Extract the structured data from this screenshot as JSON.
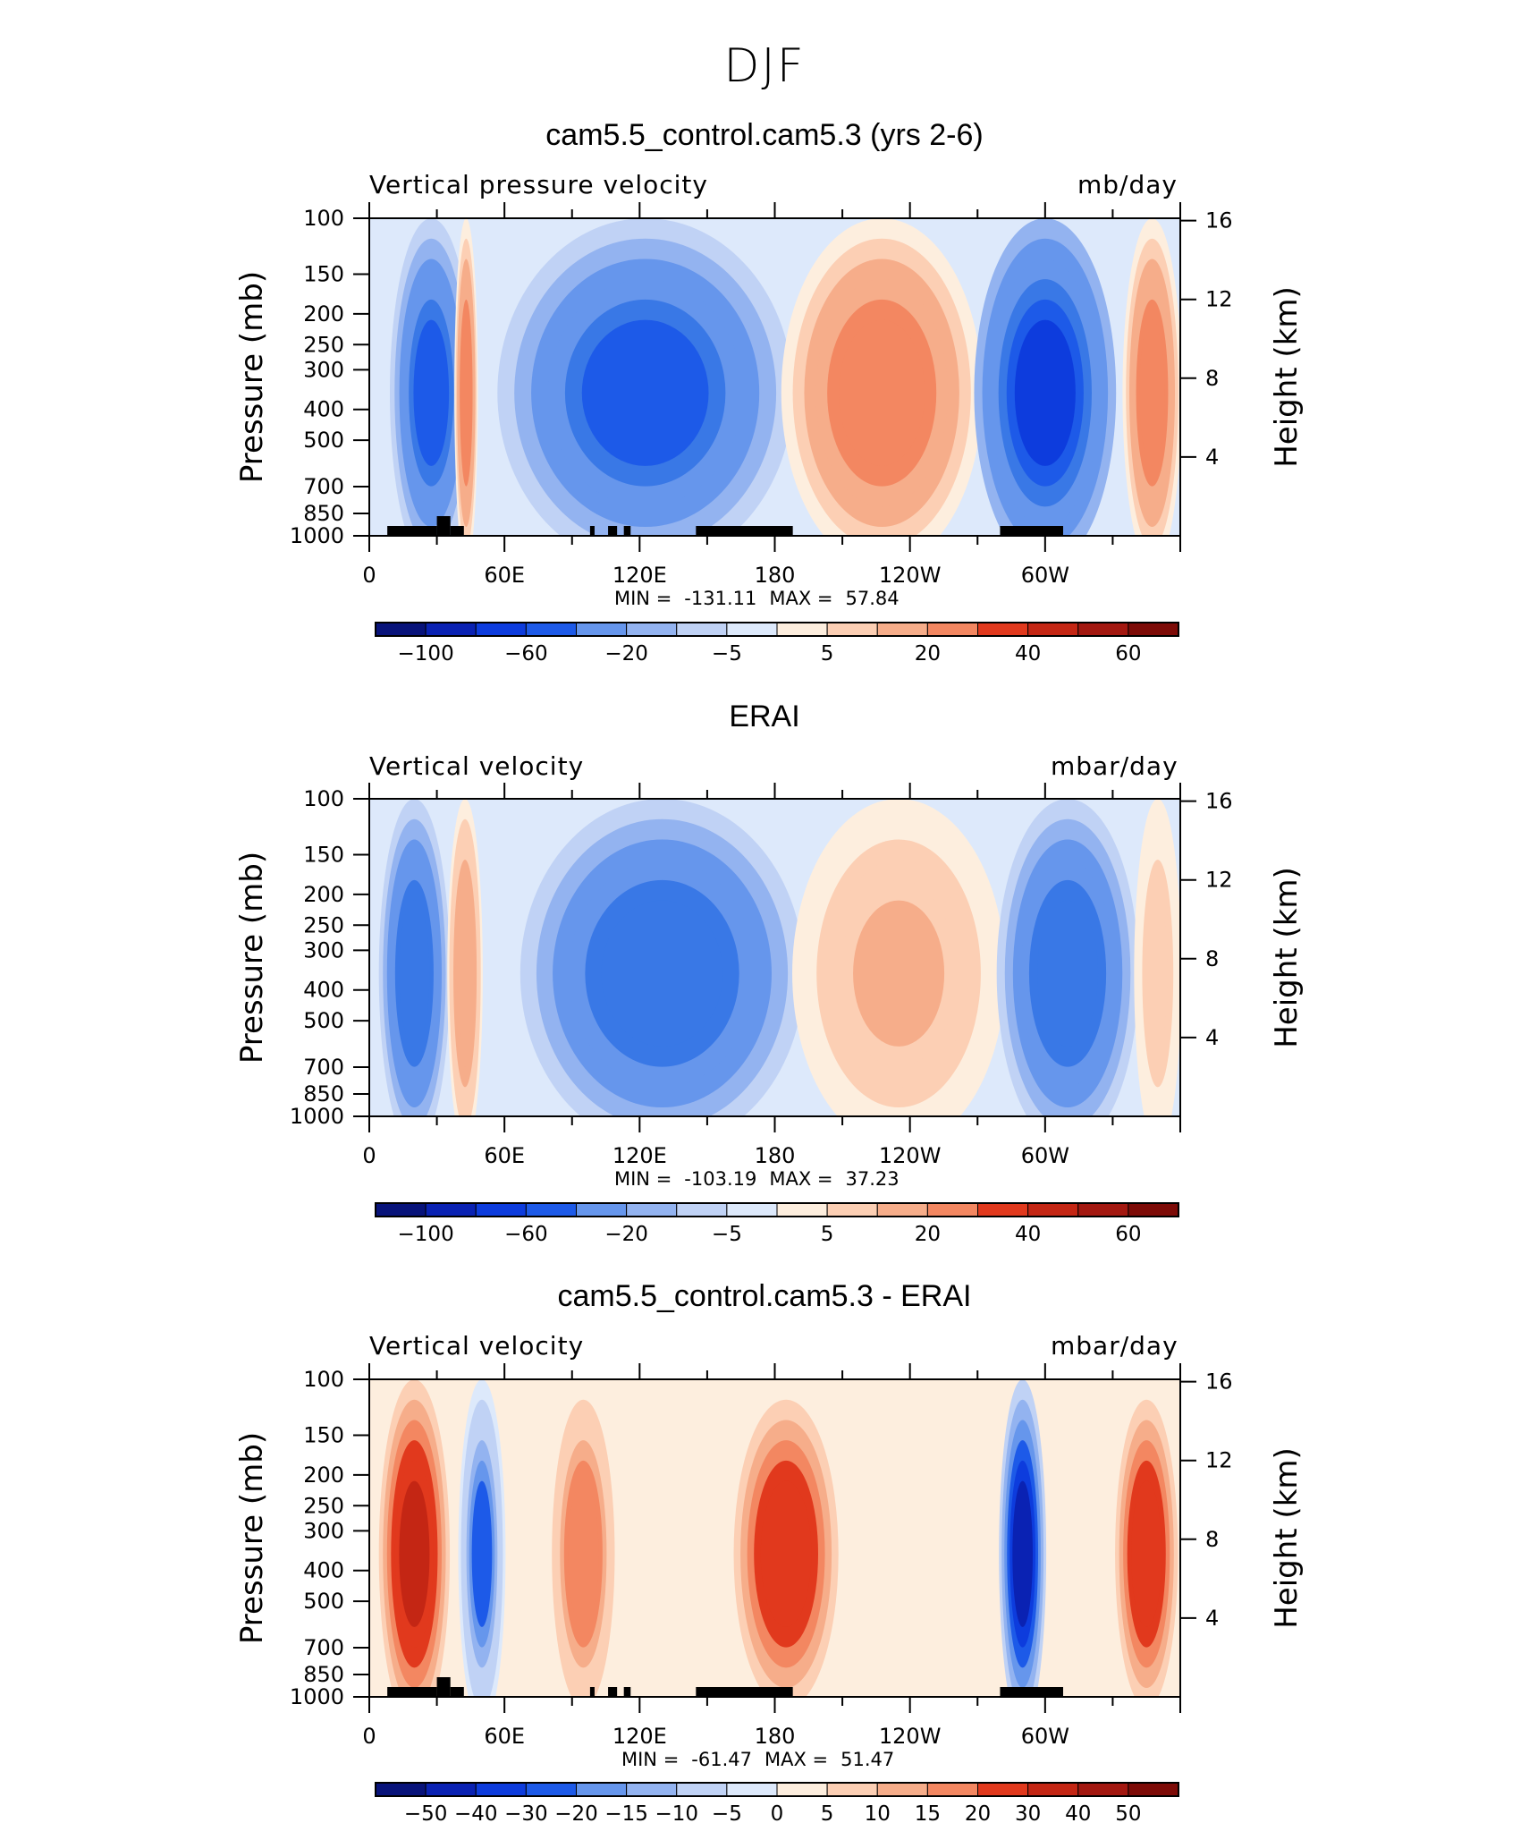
{
  "main_title": "DJF",
  "colors": {
    "scale": [
      "#08137a",
      "#0a22b3",
      "#0d3cdd",
      "#1d5ae8",
      "#3978e6",
      "#6696ec",
      "#93b3f0",
      "#c0d2f5",
      "#dde9fb",
      "#fdeede",
      "#fccfb4",
      "#f6ad8a",
      "#f38761",
      "#f15a34",
      "#e1391d",
      "#c42614",
      "#a31810",
      "#7d0b07"
    ]
  },
  "panels": [
    {
      "title": "cam5.5_control.cam5.3 (yrs 2-6)",
      "left_label": "Vertical pressure velocity",
      "right_label": "mb/day",
      "min_label": "MIN =",
      "min_value": "-131.11",
      "max_label": "MAX =",
      "max_value": "57.84",
      "colorbar_labels": [
        "−100",
        "−60",
        "−20",
        "−5",
        "5",
        "20",
        "40",
        "60"
      ]
    },
    {
      "title": "ERAI",
      "left_label": "Vertical velocity",
      "right_label": "mbar/day",
      "min_label": "MIN =",
      "min_value": "-103.19",
      "max_label": "MAX =",
      "max_value": "37.23",
      "colorbar_labels": [
        "−100",
        "−60",
        "−20",
        "−5",
        "5",
        "20",
        "40",
        "60"
      ]
    },
    {
      "title": "cam5.5_control.cam5.3 - ERAI",
      "left_label": "Vertical velocity",
      "right_label": "mbar/day",
      "min_label": "MIN =",
      "min_value": "-61.47",
      "max_label": "MAX =",
      "max_value": "51.47",
      "colorbar_labels": [
        "−50",
        "−40",
        "−30",
        "−20",
        "−15",
        "−10",
        "−5",
        "0",
        "5",
        "10",
        "15",
        "20",
        "30",
        "40",
        "50"
      ]
    }
  ],
  "chart_data": [
    {
      "type": "heatmap",
      "title": "cam5.5_control.cam5.3 (yrs 2-6)",
      "xlabel": "",
      "ylabel": "Pressure (mb)",
      "y2label": "Height (km)",
      "x_ticklabels": [
        "0",
        "60E",
        "120E",
        "180",
        "120W",
        "60W"
      ],
      "y_ticklabels": [
        "100",
        "150",
        "200",
        "250",
        "300",
        "400",
        "500",
        "700",
        "850",
        "1000"
      ],
      "y2_ticklabels": [
        "16",
        "12",
        "8",
        "4"
      ],
      "y_scale": "log",
      "ylim": [
        1000,
        100
      ],
      "units": "mb/day",
      "min": -131.11,
      "max": 57.84,
      "levels": [
        -120,
        -100,
        -80,
        -60,
        -40,
        -20,
        -10,
        -5,
        0,
        5,
        10,
        20,
        30,
        40,
        50,
        60,
        70
      ],
      "features": [
        {
          "lon_range": [
            10,
            45
          ],
          "value": -60
        },
        {
          "lon_range": [
            38,
            48
          ],
          "value": 30
        },
        {
          "lon_range": [
            60,
            185
          ],
          "value": -60
        },
        {
          "lon_range": [
            185,
            270
          ],
          "value": 25
        },
        {
          "lon_range": [
            270,
            330
          ],
          "value": -80
        },
        {
          "lon_range": [
            335,
            360
          ],
          "value": 30
        }
      ]
    },
    {
      "type": "heatmap",
      "title": "ERAI",
      "xlabel": "",
      "ylabel": "Pressure (mb)",
      "y2label": "Height (km)",
      "x_ticklabels": [
        "0",
        "60E",
        "120E",
        "180",
        "120W",
        "60W"
      ],
      "y_ticklabels": [
        "100",
        "150",
        "200",
        "250",
        "300",
        "400",
        "500",
        "700",
        "850",
        "1000"
      ],
      "y2_ticklabels": [
        "16",
        "12",
        "8",
        "4"
      ],
      "y_scale": "log",
      "ylim": [
        1000,
        100
      ],
      "units": "mbar/day",
      "min": -103.19,
      "max": 37.23,
      "levels": [
        -120,
        -100,
        -80,
        -60,
        -40,
        -20,
        -10,
        -5,
        0,
        5,
        10,
        20,
        30,
        40,
        50,
        60,
        70
      ],
      "features": [
        {
          "lon_range": [
            5,
            35
          ],
          "value": -50
        },
        {
          "lon_range": [
            35,
            50
          ],
          "value": 20
        },
        {
          "lon_range": [
            70,
            190
          ],
          "value": -50
        },
        {
          "lon_range": [
            190,
            280
          ],
          "value": 12
        },
        {
          "lon_range": [
            280,
            340
          ],
          "value": -55
        },
        {
          "lon_range": [
            340,
            360
          ],
          "value": 8
        }
      ]
    },
    {
      "type": "heatmap",
      "title": "cam5.5_control.cam5.3 - ERAI",
      "xlabel": "",
      "ylabel": "Pressure (mb)",
      "y2label": "Height (km)",
      "x_ticklabels": [
        "0",
        "60E",
        "120E",
        "180",
        "120W",
        "60W"
      ],
      "y_ticklabels": [
        "100",
        "150",
        "200",
        "250",
        "300",
        "400",
        "500",
        "700",
        "850",
        "1000"
      ],
      "y2_ticklabels": [
        "16",
        "12",
        "8",
        "4"
      ],
      "y_scale": "log",
      "ylim": [
        1000,
        100
      ],
      "units": "mbar/day",
      "min": -61.47,
      "max": 51.47,
      "levels": [
        -50,
        -40,
        -30,
        -20,
        -15,
        -10,
        -5,
        0,
        5,
        10,
        15,
        20,
        30,
        40,
        50
      ],
      "features": [
        {
          "lon_range": [
            5,
            35
          ],
          "value": 35
        },
        {
          "lon_range": [
            40,
            60
          ],
          "value": -20
        },
        {
          "lon_range": [
            80,
            110
          ],
          "value": 20
        },
        {
          "lon_range": [
            160,
            210
          ],
          "value": 30
        },
        {
          "lon_range": [
            280,
            300
          ],
          "value": -40
        },
        {
          "lon_range": [
            330,
            360
          ],
          "value": 30
        }
      ]
    }
  ]
}
